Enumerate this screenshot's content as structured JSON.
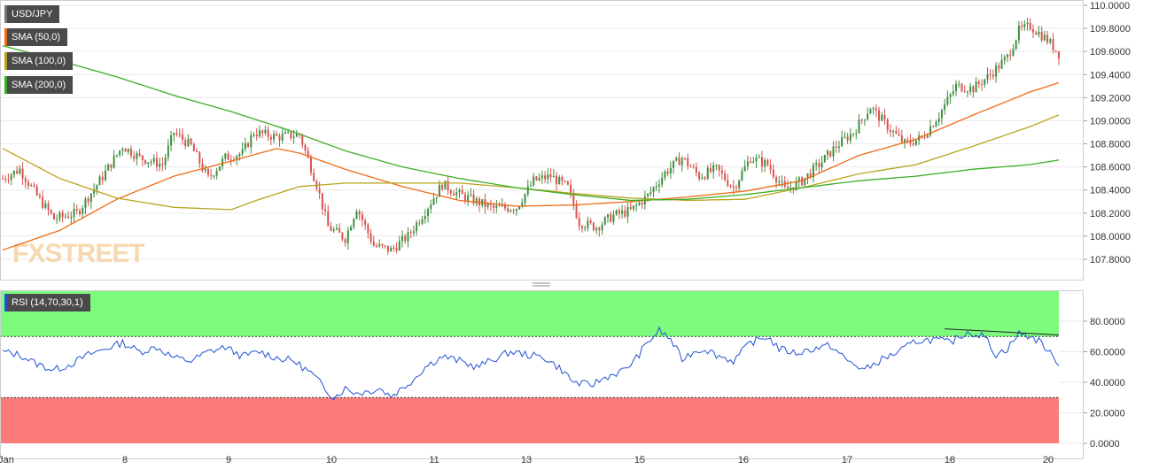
{
  "symbol": "USD/JPY",
  "watermark": "FXSTREET",
  "colors": {
    "bull": "#3f8f3f",
    "bear": "#d9534f",
    "sma50": "#ee6a16",
    "sma100": "#b9a31e",
    "sma200": "#3cae27",
    "rsi": "#2152d6",
    "rsi_overbought": "#7dfb7d",
    "rsi_oversold": "#fb7b7b"
  },
  "indicators": [
    {
      "label": "SMA (50,0)",
      "color": "#ee6a16"
    },
    {
      "label": "SMA (100,0)",
      "color": "#b9a31e"
    },
    {
      "label": "SMA (200,0)",
      "color": "#3cae27"
    }
  ],
  "rsi_label": "RSI (14,70,30,1)",
  "chart_data": [
    {
      "type": "candlestick",
      "title": "USD/JPY",
      "x_labels": [
        "Jan",
        "8",
        "9",
        "10",
        "11",
        "13",
        "14",
        "15",
        "16",
        "17",
        "18",
        "20"
      ],
      "ylim": [
        107.65,
        110.05
      ],
      "y_ticks": [
        "110.0000",
        "109.8000",
        "109.6000",
        "109.4000",
        "109.2000",
        "109.0000",
        "108.8000",
        "108.6000",
        "108.4000",
        "108.2000",
        "108.0000",
        "107.8000"
      ],
      "y_tick_values": [
        110.0,
        109.8,
        109.6,
        109.4,
        109.2,
        109.0,
        108.8,
        108.6,
        108.4,
        108.2,
        108.0,
        107.8
      ],
      "price_path": [
        [
          0,
          108.5
        ],
        [
          6,
          108.58
        ],
        [
          12,
          108.35
        ],
        [
          18,
          108.15
        ],
        [
          26,
          108.2
        ],
        [
          34,
          108.48
        ],
        [
          42,
          108.78
        ],
        [
          48,
          108.68
        ],
        [
          56,
          108.62
        ],
        [
          60,
          108.9
        ],
        [
          66,
          108.78
        ],
        [
          72,
          108.5
        ],
        [
          78,
          108.68
        ],
        [
          84,
          108.72
        ],
        [
          88,
          108.9
        ],
        [
          96,
          108.86
        ],
        [
          104,
          108.88
        ],
        [
          110,
          108.45
        ],
        [
          114,
          108.08
        ],
        [
          120,
          107.98
        ],
        [
          124,
          108.25
        ],
        [
          130,
          107.92
        ],
        [
          136,
          107.88
        ],
        [
          142,
          108.0
        ],
        [
          148,
          108.22
        ],
        [
          154,
          108.45
        ],
        [
          160,
          108.36
        ],
        [
          166,
          108.3
        ],
        [
          172,
          108.24
        ],
        [
          180,
          108.25
        ],
        [
          186,
          108.48
        ],
        [
          192,
          108.52
        ],
        [
          198,
          108.42
        ],
        [
          202,
          108.12
        ],
        [
          208,
          108.08
        ],
        [
          214,
          108.18
        ],
        [
          220,
          108.22
        ],
        [
          226,
          108.35
        ],
        [
          232,
          108.55
        ],
        [
          238,
          108.68
        ],
        [
          244,
          108.52
        ],
        [
          250,
          108.58
        ],
        [
          256,
          108.42
        ],
        [
          262,
          108.68
        ],
        [
          268,
          108.62
        ],
        [
          274,
          108.4
        ],
        [
          280,
          108.48
        ],
        [
          286,
          108.62
        ],
        [
          292,
          108.78
        ],
        [
          298,
          108.9
        ],
        [
          304,
          109.12
        ],
        [
          310,
          108.95
        ],
        [
          316,
          108.8
        ],
        [
          322,
          108.85
        ],
        [
          328,
          109.05
        ],
        [
          334,
          109.3
        ],
        [
          340,
          109.28
        ],
        [
          346,
          109.4
        ],
        [
          352,
          109.55
        ],
        [
          356,
          109.78
        ],
        [
          360,
          109.82
        ],
        [
          366,
          109.7
        ],
        [
          370,
          109.58
        ]
      ],
      "series": [
        {
          "name": "SMA (50,0)",
          "color": "#ee6a16",
          "points": [
            [
              0,
              107.88
            ],
            [
              20,
              108.05
            ],
            [
              40,
              108.32
            ],
            [
              60,
              108.52
            ],
            [
              80,
              108.65
            ],
            [
              96,
              108.76
            ],
            [
              104,
              108.72
            ],
            [
              120,
              108.58
            ],
            [
              140,
              108.43
            ],
            [
              160,
              108.31
            ],
            [
              180,
              108.26
            ],
            [
              200,
              108.27
            ],
            [
              220,
              108.3
            ],
            [
              240,
              108.34
            ],
            [
              260,
              108.39
            ],
            [
              280,
              108.48
            ],
            [
              300,
              108.7
            ],
            [
              320,
              108.84
            ],
            [
              340,
              109.05
            ],
            [
              360,
              109.25
            ],
            [
              370,
              109.33
            ]
          ]
        },
        {
          "name": "SMA (100,0)",
          "color": "#b9a31e",
          "points": [
            [
              0,
              108.76
            ],
            [
              20,
              108.5
            ],
            [
              40,
              108.33
            ],
            [
              60,
              108.25
            ],
            [
              80,
              108.23
            ],
            [
              90,
              108.32
            ],
            [
              104,
              108.43
            ],
            [
              120,
              108.46
            ],
            [
              140,
              108.46
            ],
            [
              160,
              108.46
            ],
            [
              180,
              108.42
            ],
            [
              200,
              108.37
            ],
            [
              220,
              108.33
            ],
            [
              240,
              108.31
            ],
            [
              260,
              108.32
            ],
            [
              280,
              108.42
            ],
            [
              300,
              108.54
            ],
            [
              320,
              108.62
            ],
            [
              340,
              108.78
            ],
            [
              360,
              108.95
            ],
            [
              370,
              109.05
            ]
          ]
        },
        {
          "name": "SMA (200,0)",
          "color": "#3cae27",
          "points": [
            [
              0,
              109.65
            ],
            [
              20,
              109.52
            ],
            [
              40,
              109.38
            ],
            [
              60,
              109.22
            ],
            [
              80,
              109.08
            ],
            [
              100,
              108.92
            ],
            [
              120,
              108.74
            ],
            [
              140,
              108.6
            ],
            [
              160,
              108.5
            ],
            [
              180,
              108.42
            ],
            [
              200,
              108.36
            ],
            [
              220,
              108.31
            ],
            [
              240,
              108.32
            ],
            [
              260,
              108.36
            ],
            [
              280,
              108.42
            ],
            [
              300,
              108.48
            ],
            [
              320,
              108.52
            ],
            [
              340,
              108.58
            ],
            [
              360,
              108.62
            ],
            [
              370,
              108.66
            ]
          ]
        }
      ]
    },
    {
      "type": "line",
      "title": "RSI (14,70,30,1)",
      "ylim": [
        0,
        100
      ],
      "y_ticks": [
        "80.0000",
        "60.0000",
        "40.0000",
        "20.0000",
        "0.0000"
      ],
      "y_tick_values": [
        80,
        60,
        40,
        20,
        0
      ],
      "bands": [
        {
          "name": "overbought",
          "from": 70,
          "to": 100,
          "color": "#7dfb7d"
        },
        {
          "name": "oversold",
          "from": 0,
          "to": 30,
          "color": "#fb7b7b"
        }
      ],
      "series": [
        {
          "name": "RSI",
          "color": "#2152d6",
          "points": [
            [
              0,
              60
            ],
            [
              6,
              58
            ],
            [
              12,
              52
            ],
            [
              18,
              48
            ],
            [
              24,
              52
            ],
            [
              30,
              58
            ],
            [
              36,
              62
            ],
            [
              42,
              66
            ],
            [
              48,
              60
            ],
            [
              54,
              63
            ],
            [
              60,
              56
            ],
            [
              66,
              54
            ],
            [
              72,
              60
            ],
            [
              78,
              63
            ],
            [
              84,
              57
            ],
            [
              90,
              60
            ],
            [
              96,
              56
            ],
            [
              102,
              54
            ],
            [
              108,
              46
            ],
            [
              112,
              38
            ],
            [
              116,
              30
            ],
            [
              120,
              36
            ],
            [
              124,
              33
            ],
            [
              128,
              34
            ],
            [
              132,
              36
            ],
            [
              136,
              31
            ],
            [
              140,
              36
            ],
            [
              144,
              42
            ],
            [
              148,
              50
            ],
            [
              154,
              57
            ],
            [
              160,
              54
            ],
            [
              166,
              50
            ],
            [
              172,
              55
            ],
            [
              178,
              60
            ],
            [
              184,
              58
            ],
            [
              190,
              56
            ],
            [
              196,
              48
            ],
            [
              200,
              40
            ],
            [
              206,
              38
            ],
            [
              212,
              44
            ],
            [
              218,
              48
            ],
            [
              222,
              56
            ],
            [
              226,
              66
            ],
            [
              230,
              74
            ],
            [
              234,
              68
            ],
            [
              238,
              55
            ],
            [
              242,
              60
            ],
            [
              246,
              62
            ],
            [
              250,
              58
            ],
            [
              256,
              54
            ],
            [
              262,
              66
            ],
            [
              268,
              70
            ],
            [
              272,
              62
            ],
            [
              278,
              59
            ],
            [
              284,
              62
            ],
            [
              290,
              64
            ],
            [
              296,
              54
            ],
            [
              302,
              48
            ],
            [
              308,
              55
            ],
            [
              314,
              60
            ],
            [
              320,
              67
            ],
            [
              326,
              68
            ],
            [
              332,
              66
            ],
            [
              338,
              73
            ],
            [
              344,
              70
            ],
            [
              348,
              58
            ],
            [
              352,
              62
            ],
            [
              356,
              72
            ],
            [
              360,
              70
            ],
            [
              364,
              66
            ],
            [
              368,
              56
            ],
            [
              370,
              53
            ]
          ]
        }
      ],
      "divergence_line": [
        [
          330,
          75
        ],
        [
          370,
          71
        ]
      ]
    }
  ]
}
